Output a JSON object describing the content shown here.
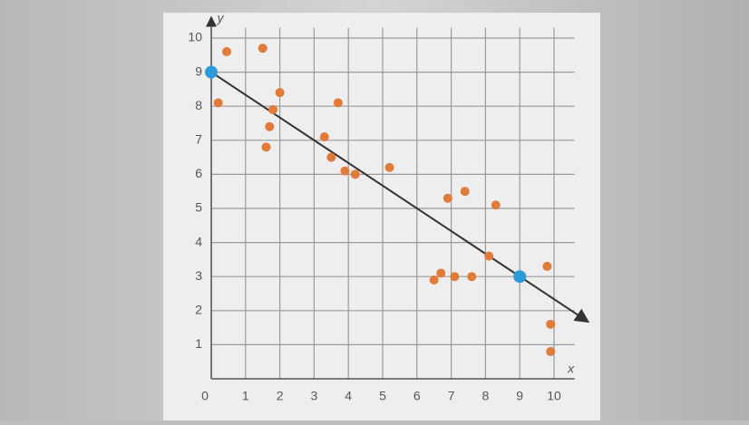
{
  "chart_data": {
    "type": "scatter",
    "xlabel": "x",
    "ylabel": "y",
    "xlim": [
      0,
      10.6
    ],
    "ylim": [
      0,
      10.3
    ],
    "xticks": [
      0,
      1,
      2,
      3,
      4,
      5,
      6,
      7,
      8,
      9,
      10
    ],
    "yticks": [
      1,
      2,
      3,
      4,
      5,
      6,
      7,
      8,
      9,
      10
    ],
    "grid": true,
    "series": [
      {
        "color": "#e07b39",
        "x": [
          0.45,
          1.5,
          0.2,
          2,
          1.8,
          1.7,
          1.6,
          3.7,
          3.3,
          3.5,
          3.9,
          4.2,
          5.2,
          6.9,
          7.4,
          8.3,
          6.5,
          6.7,
          7.1,
          7.6,
          8.1,
          9.8,
          9.9,
          9.9
        ],
        "values": [
          9.6,
          9.7,
          8.1,
          8.4,
          7.9,
          7.4,
          6.8,
          8.1,
          7.1,
          6.5,
          6.1,
          6.0,
          6.2,
          5.3,
          5.5,
          5.1,
          2.9,
          3.1,
          3.0,
          3.0,
          3.6,
          3.3,
          1.6,
          0.8
        ]
      },
      {
        "color": "#2e9ad9",
        "x": [
          0,
          9
        ],
        "values": [
          9,
          3
        ]
      }
    ],
    "line": {
      "color": "#333333",
      "x": [
        0,
        11
      ],
      "values": [
        9,
        1.67
      ]
    }
  }
}
